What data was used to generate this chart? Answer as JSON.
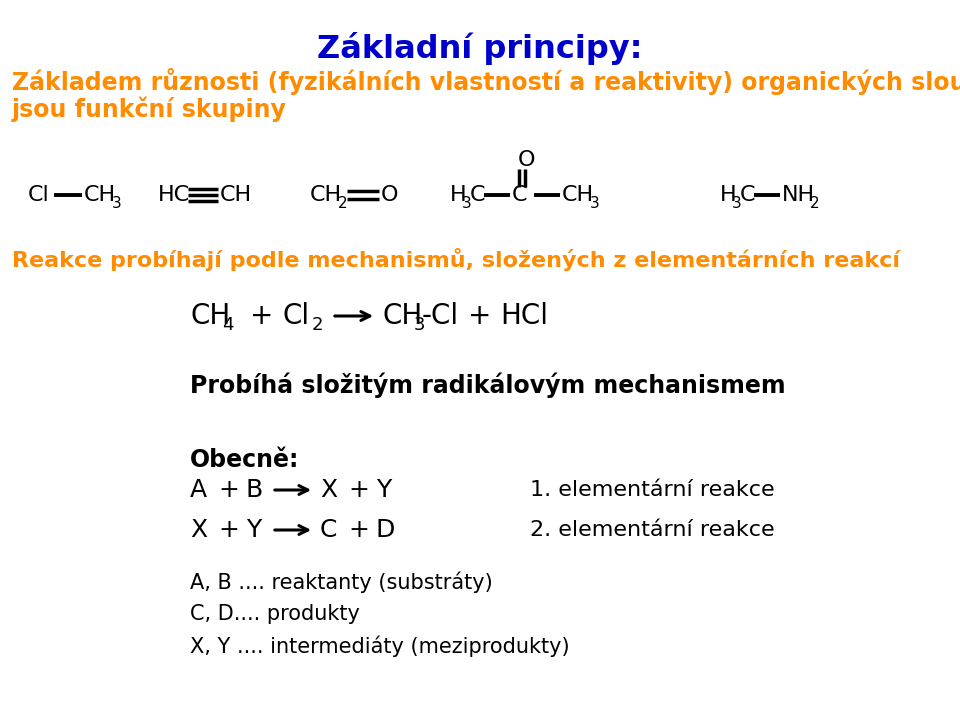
{
  "title": "Základní principy:",
  "title_color": "#0000CC",
  "title_fontsize": 22,
  "subtitle1": "Základem různosti (fyzikálních vlastností a reaktivity) organických sloučenin",
  "subtitle2": "jsou funkční skupiny",
  "subtitle_color": "#FF8C00",
  "subtitle_fontsize": 17,
  "reaction_text": "Reakce probíhají podle mechanismů, složených z elementárních reakcí",
  "reaction_color": "#FF8C00",
  "reaction_fontsize": 16,
  "bg_color": "#FFFFFF",
  "black": "#000000",
  "orange": "#FF8C00",
  "blue": "#0000CC"
}
